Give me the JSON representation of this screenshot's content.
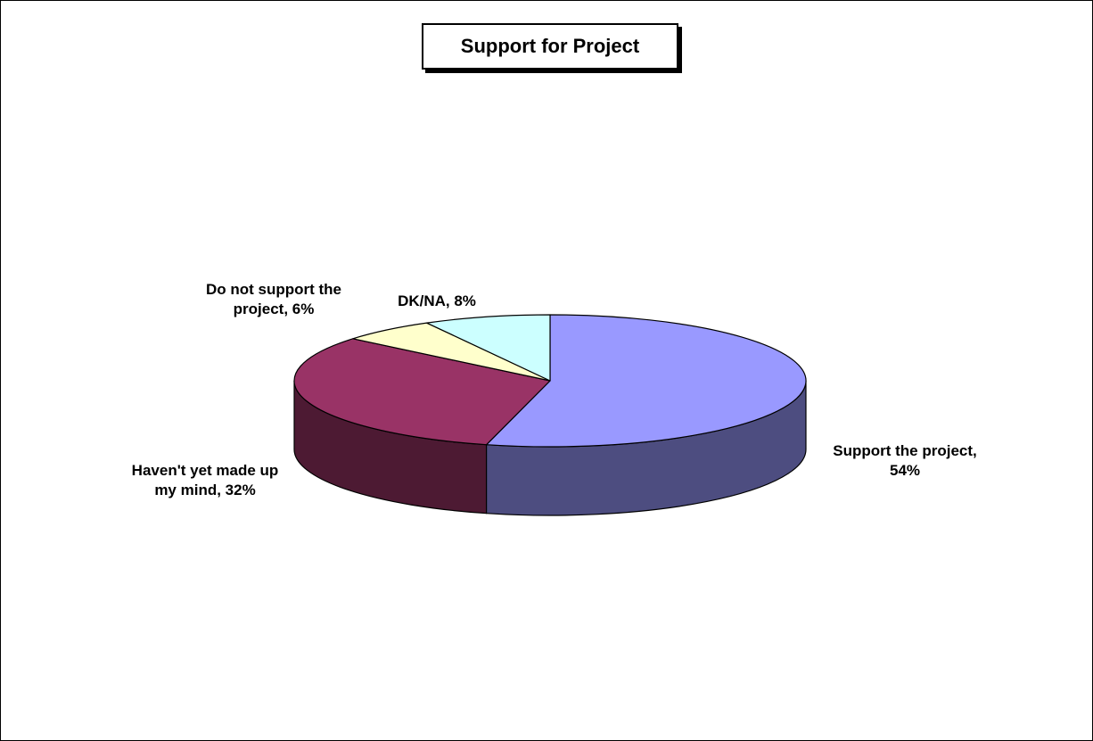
{
  "chart_data": {
    "type": "pie",
    "title": "Support for Project",
    "three_d": true,
    "slices": [
      {
        "label": "Support the project",
        "value": 54,
        "label_lines": [
          "Support the project,",
          "54%"
        ],
        "color": "#9999FF",
        "side_color": "#4D4D80"
      },
      {
        "label": "Haven't yet made up my mind",
        "value": 32,
        "label_lines": [
          "Haven't yet made up",
          "my mind, 32%"
        ],
        "color": "#993366",
        "side_color": "#4D1A33"
      },
      {
        "label": "Do not support the project",
        "value": 6,
        "label_lines": [
          "Do not support the",
          "project, 6%"
        ],
        "color": "#FFFFCC",
        "side_color": "#808066"
      },
      {
        "label": "DK/NA",
        "value": 8,
        "label_lines": [
          "DK/NA, 8%"
        ],
        "color": "#CCFFFF",
        "side_color": "#668080"
      }
    ]
  }
}
